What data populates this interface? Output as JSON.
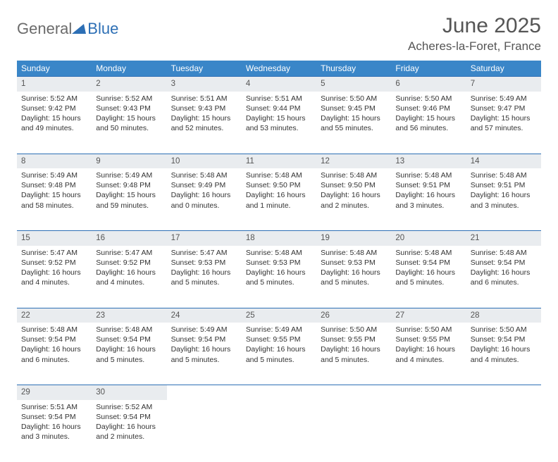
{
  "brand": {
    "part1": "General",
    "part2": "Blue"
  },
  "title": "June 2025",
  "location": "Acheres-la-Foret, France",
  "colors": {
    "header_bg": "#3a86c8",
    "header_text": "#ffffff",
    "daynum_bg": "#e9ecef",
    "rule": "#2d6fb5",
    "text": "#333333",
    "title": "#555555"
  },
  "weekdays": [
    "Sunday",
    "Monday",
    "Tuesday",
    "Wednesday",
    "Thursday",
    "Friday",
    "Saturday"
  ],
  "weeks": [
    {
      "nums": [
        "1",
        "2",
        "3",
        "4",
        "5",
        "6",
        "7"
      ],
      "cells": [
        {
          "sunrise": "Sunrise: 5:52 AM",
          "sunset": "Sunset: 9:42 PM",
          "day": "Daylight: 15 hours and 49 minutes."
        },
        {
          "sunrise": "Sunrise: 5:52 AM",
          "sunset": "Sunset: 9:43 PM",
          "day": "Daylight: 15 hours and 50 minutes."
        },
        {
          "sunrise": "Sunrise: 5:51 AM",
          "sunset": "Sunset: 9:43 PM",
          "day": "Daylight: 15 hours and 52 minutes."
        },
        {
          "sunrise": "Sunrise: 5:51 AM",
          "sunset": "Sunset: 9:44 PM",
          "day": "Daylight: 15 hours and 53 minutes."
        },
        {
          "sunrise": "Sunrise: 5:50 AM",
          "sunset": "Sunset: 9:45 PM",
          "day": "Daylight: 15 hours and 55 minutes."
        },
        {
          "sunrise": "Sunrise: 5:50 AM",
          "sunset": "Sunset: 9:46 PM",
          "day": "Daylight: 15 hours and 56 minutes."
        },
        {
          "sunrise": "Sunrise: 5:49 AM",
          "sunset": "Sunset: 9:47 PM",
          "day": "Daylight: 15 hours and 57 minutes."
        }
      ]
    },
    {
      "nums": [
        "8",
        "9",
        "10",
        "11",
        "12",
        "13",
        "14"
      ],
      "cells": [
        {
          "sunrise": "Sunrise: 5:49 AM",
          "sunset": "Sunset: 9:48 PM",
          "day": "Daylight: 15 hours and 58 minutes."
        },
        {
          "sunrise": "Sunrise: 5:49 AM",
          "sunset": "Sunset: 9:48 PM",
          "day": "Daylight: 15 hours and 59 minutes."
        },
        {
          "sunrise": "Sunrise: 5:48 AM",
          "sunset": "Sunset: 9:49 PM",
          "day": "Daylight: 16 hours and 0 minutes."
        },
        {
          "sunrise": "Sunrise: 5:48 AM",
          "sunset": "Sunset: 9:50 PM",
          "day": "Daylight: 16 hours and 1 minute."
        },
        {
          "sunrise": "Sunrise: 5:48 AM",
          "sunset": "Sunset: 9:50 PM",
          "day": "Daylight: 16 hours and 2 minutes."
        },
        {
          "sunrise": "Sunrise: 5:48 AM",
          "sunset": "Sunset: 9:51 PM",
          "day": "Daylight: 16 hours and 3 minutes."
        },
        {
          "sunrise": "Sunrise: 5:48 AM",
          "sunset": "Sunset: 9:51 PM",
          "day": "Daylight: 16 hours and 3 minutes."
        }
      ]
    },
    {
      "nums": [
        "15",
        "16",
        "17",
        "18",
        "19",
        "20",
        "21"
      ],
      "cells": [
        {
          "sunrise": "Sunrise: 5:47 AM",
          "sunset": "Sunset: 9:52 PM",
          "day": "Daylight: 16 hours and 4 minutes."
        },
        {
          "sunrise": "Sunrise: 5:47 AM",
          "sunset": "Sunset: 9:52 PM",
          "day": "Daylight: 16 hours and 4 minutes."
        },
        {
          "sunrise": "Sunrise: 5:47 AM",
          "sunset": "Sunset: 9:53 PM",
          "day": "Daylight: 16 hours and 5 minutes."
        },
        {
          "sunrise": "Sunrise: 5:48 AM",
          "sunset": "Sunset: 9:53 PM",
          "day": "Daylight: 16 hours and 5 minutes."
        },
        {
          "sunrise": "Sunrise: 5:48 AM",
          "sunset": "Sunset: 9:53 PM",
          "day": "Daylight: 16 hours and 5 minutes."
        },
        {
          "sunrise": "Sunrise: 5:48 AM",
          "sunset": "Sunset: 9:54 PM",
          "day": "Daylight: 16 hours and 5 minutes."
        },
        {
          "sunrise": "Sunrise: 5:48 AM",
          "sunset": "Sunset: 9:54 PM",
          "day": "Daylight: 16 hours and 6 minutes."
        }
      ]
    },
    {
      "nums": [
        "22",
        "23",
        "24",
        "25",
        "26",
        "27",
        "28"
      ],
      "cells": [
        {
          "sunrise": "Sunrise: 5:48 AM",
          "sunset": "Sunset: 9:54 PM",
          "day": "Daylight: 16 hours and 6 minutes."
        },
        {
          "sunrise": "Sunrise: 5:48 AM",
          "sunset": "Sunset: 9:54 PM",
          "day": "Daylight: 16 hours and 5 minutes."
        },
        {
          "sunrise": "Sunrise: 5:49 AM",
          "sunset": "Sunset: 9:54 PM",
          "day": "Daylight: 16 hours and 5 minutes."
        },
        {
          "sunrise": "Sunrise: 5:49 AM",
          "sunset": "Sunset: 9:55 PM",
          "day": "Daylight: 16 hours and 5 minutes."
        },
        {
          "sunrise": "Sunrise: 5:50 AM",
          "sunset": "Sunset: 9:55 PM",
          "day": "Daylight: 16 hours and 5 minutes."
        },
        {
          "sunrise": "Sunrise: 5:50 AM",
          "sunset": "Sunset: 9:55 PM",
          "day": "Daylight: 16 hours and 4 minutes."
        },
        {
          "sunrise": "Sunrise: 5:50 AM",
          "sunset": "Sunset: 9:54 PM",
          "day": "Daylight: 16 hours and 4 minutes."
        }
      ]
    },
    {
      "nums": [
        "29",
        "30",
        "",
        "",
        "",
        "",
        ""
      ],
      "cells": [
        {
          "sunrise": "Sunrise: 5:51 AM",
          "sunset": "Sunset: 9:54 PM",
          "day": "Daylight: 16 hours and 3 minutes."
        },
        {
          "sunrise": "Sunrise: 5:52 AM",
          "sunset": "Sunset: 9:54 PM",
          "day": "Daylight: 16 hours and 2 minutes."
        },
        null,
        null,
        null,
        null,
        null
      ]
    }
  ]
}
